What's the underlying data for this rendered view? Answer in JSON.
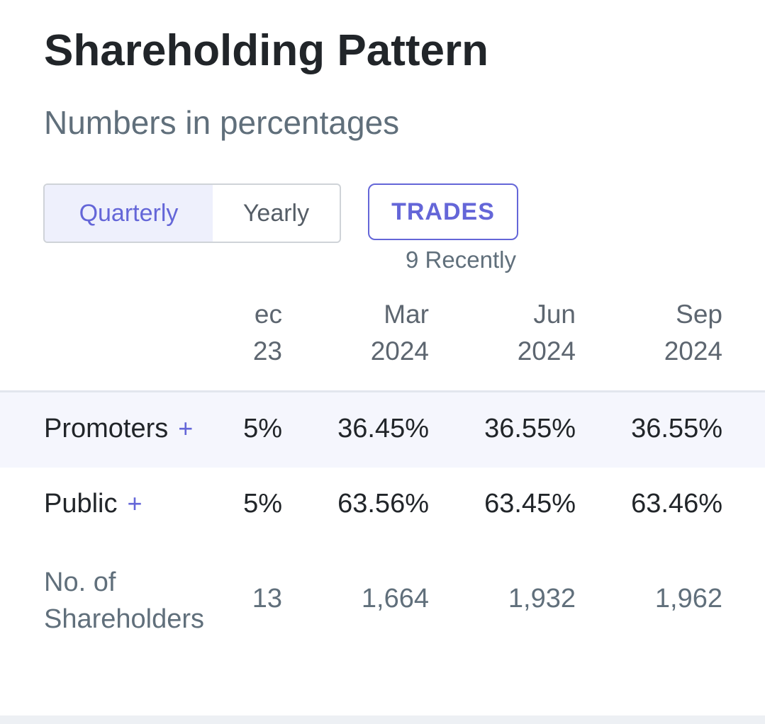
{
  "header": {
    "title": "Shareholding Pattern",
    "subtitle": "Numbers in percentages"
  },
  "toggle": {
    "options": [
      "Quarterly",
      "Yearly"
    ],
    "selected": "Quarterly"
  },
  "trades": {
    "label": "TRADES",
    "subtext": "9 Recently"
  },
  "table": {
    "columns": [
      {
        "line1": "ec",
        "line2": "23"
      },
      {
        "line1": "Mar",
        "line2": "2024"
      },
      {
        "line1": "Jun",
        "line2": "2024"
      },
      {
        "line1": "Sep",
        "line2": "2024"
      }
    ],
    "rows": [
      {
        "label": "Promoters",
        "expand": "+",
        "values": [
          "5%",
          "36.45%",
          "36.55%",
          "36.55%"
        ]
      },
      {
        "label": "Public",
        "expand": "+",
        "values": [
          "5%",
          "63.56%",
          "63.45%",
          "63.46%"
        ]
      },
      {
        "label_line1": "No. of",
        "label_line2": "Shareholders",
        "values": [
          "13",
          "1,664",
          "1,932",
          "1,962"
        ]
      }
    ]
  },
  "colors": {
    "accent": "#6466d8",
    "text": "#212529",
    "muted": "#606f7b",
    "row_highlight": "#f5f6fd"
  }
}
